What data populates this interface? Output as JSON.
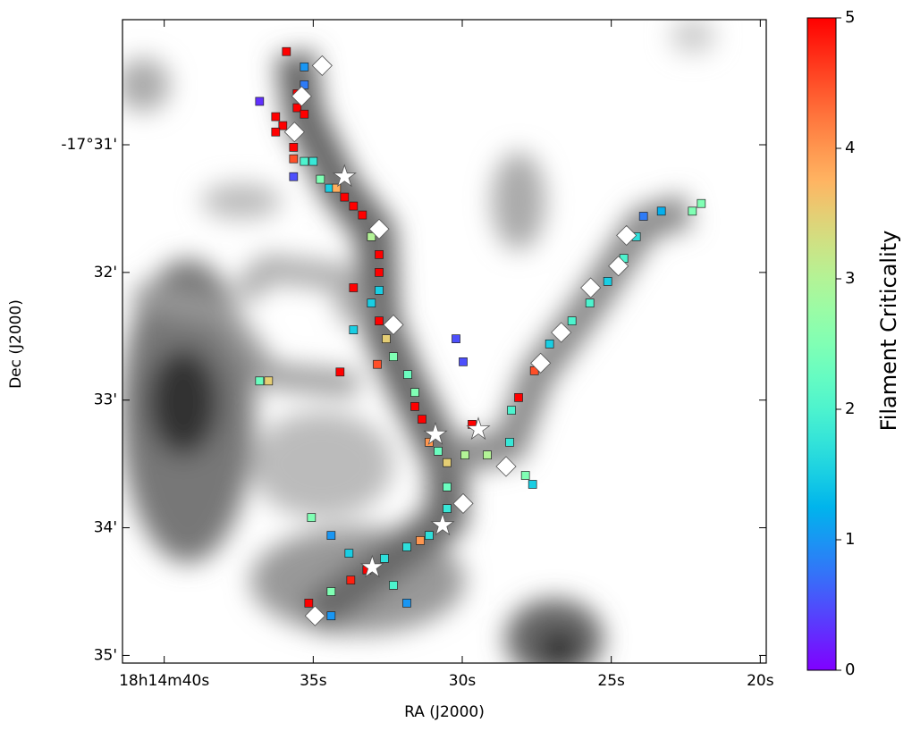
{
  "chart_data": {
    "type": "scatter",
    "xlabel": "RA (J2000)",
    "ylabel": "Dec (J2000)",
    "xlim": [
      41.4,
      19.8
    ],
    "xticks": [
      {
        "value": 40,
        "label": "18h14m40s"
      },
      {
        "value": 35,
        "label": "35s"
      },
      {
        "value": 30,
        "label": "30s"
      },
      {
        "value": 25,
        "label": "25s"
      },
      {
        "value": 20,
        "label": "20s"
      }
    ],
    "ylim": [
      35.06,
      30.02
    ],
    "yticks": [
      {
        "value": 31,
        "label": "-17°31'"
      },
      {
        "value": 32,
        "label": "32'"
      },
      {
        "value": 33,
        "label": "33'"
      },
      {
        "value": 34,
        "label": "34'"
      },
      {
        "value": 35,
        "label": "35'"
      }
    ],
    "filament": {
      "x": [
        35.9,
        35.3,
        35.3,
        35.54,
        35.54,
        35.3,
        36.26,
        36.02,
        36.26,
        35.66,
        35.66,
        35.3,
        35.0,
        34.76,
        34.46,
        34.22,
        33.95,
        33.65,
        33.35,
        33.05,
        32.79,
        32.79,
        32.79,
        33.05,
        32.79,
        32.55,
        32.31,
        31.83,
        31.59,
        31.59,
        31.35,
        31.11,
        30.81,
        30.51,
        30.51,
        30.51,
        31.11,
        31.41,
        31.86,
        32.61,
        33.2,
        33.74,
        34.4,
        35.15,
        34.4,
        32.31,
        31.86,
        35.06,
        34.4,
        33.8,
        29.91,
        29.16,
        28.41,
        28.35,
        28.11,
        27.58,
        27.07,
        26.32,
        25.72,
        25.12,
        24.58,
        24.16,
        23.92,
        23.32,
        22.28,
        21.98,
        29.67,
        30.21,
        29.97,
        36.8,
        35.66,
        33.65,
        34.1,
        36.8,
        36.5,
        27.88,
        27.64,
        32.85,
        33.65
      ],
      "y": [
        30.27,
        30.39,
        30.53,
        30.6,
        30.71,
        30.76,
        30.78,
        30.85,
        30.9,
        31.02,
        31.11,
        31.13,
        31.13,
        31.27,
        31.34,
        31.34,
        31.41,
        31.48,
        31.55,
        31.72,
        31.86,
        32.0,
        32.14,
        32.24,
        32.38,
        32.52,
        32.66,
        32.8,
        32.94,
        33.05,
        33.15,
        33.33,
        33.4,
        33.49,
        33.68,
        33.85,
        34.06,
        34.1,
        34.15,
        34.24,
        34.33,
        34.41,
        34.5,
        34.59,
        34.69,
        34.45,
        34.59,
        33.92,
        34.06,
        34.2,
        33.43,
        33.43,
        33.33,
        33.08,
        32.98,
        32.77,
        32.56,
        32.38,
        32.24,
        32.07,
        31.89,
        31.72,
        31.56,
        31.52,
        31.52,
        31.46,
        33.19,
        32.52,
        32.7,
        30.66,
        31.25,
        32.12,
        32.78,
        32.85,
        32.85,
        33.59,
        33.66,
        32.72,
        32.45
      ],
      "criticality": [
        5,
        1,
        0.8,
        5,
        5,
        5,
        5,
        5,
        5,
        5,
        4.5,
        2,
        1.8,
        2.5,
        1.5,
        3.8,
        5,
        5,
        5,
        3,
        5,
        5,
        1.5,
        1.5,
        5,
        3.5,
        2.5,
        2.3,
        2.5,
        5,
        5,
        4,
        2.3,
        3.5,
        2.3,
        1.8,
        1.7,
        4,
        1.7,
        1.7,
        5,
        4.8,
        2.5,
        5,
        1,
        2,
        1,
        2.5,
        1,
        1.5,
        3,
        3,
        1.8,
        2,
        5,
        4.5,
        1.5,
        2,
        2,
        1.5,
        2,
        1.7,
        0.8,
        1.2,
        2.5,
        2.5,
        5,
        0.5,
        0.5,
        0.3,
        0.5,
        5,
        5,
        2.3,
        3.5,
        2.5,
        1.5,
        4.5,
        1.5
      ]
    },
    "diamonds": {
      "x": [
        34.7,
        35.39,
        35.63,
        32.79,
        32.31,
        27.37,
        26.68,
        25.69,
        24.76,
        24.49,
        28.53,
        29.97,
        34.94
      ],
      "y": [
        30.38,
        30.62,
        30.9,
        31.66,
        32.41,
        32.71,
        32.47,
        32.12,
        31.95,
        31.71,
        33.52,
        33.81,
        34.69
      ]
    },
    "stars": {
      "x": [
        33.95,
        30.9,
        29.46,
        30.66,
        33.02
      ],
      "y": [
        31.25,
        33.27,
        33.23,
        33.98,
        34.31
      ]
    },
    "colorbar": {
      "label": "Filament Criticality",
      "lim": [
        0,
        5
      ],
      "ticks": [
        0,
        1,
        2,
        3,
        4,
        5
      ],
      "colormap": "rainbow"
    }
  }
}
